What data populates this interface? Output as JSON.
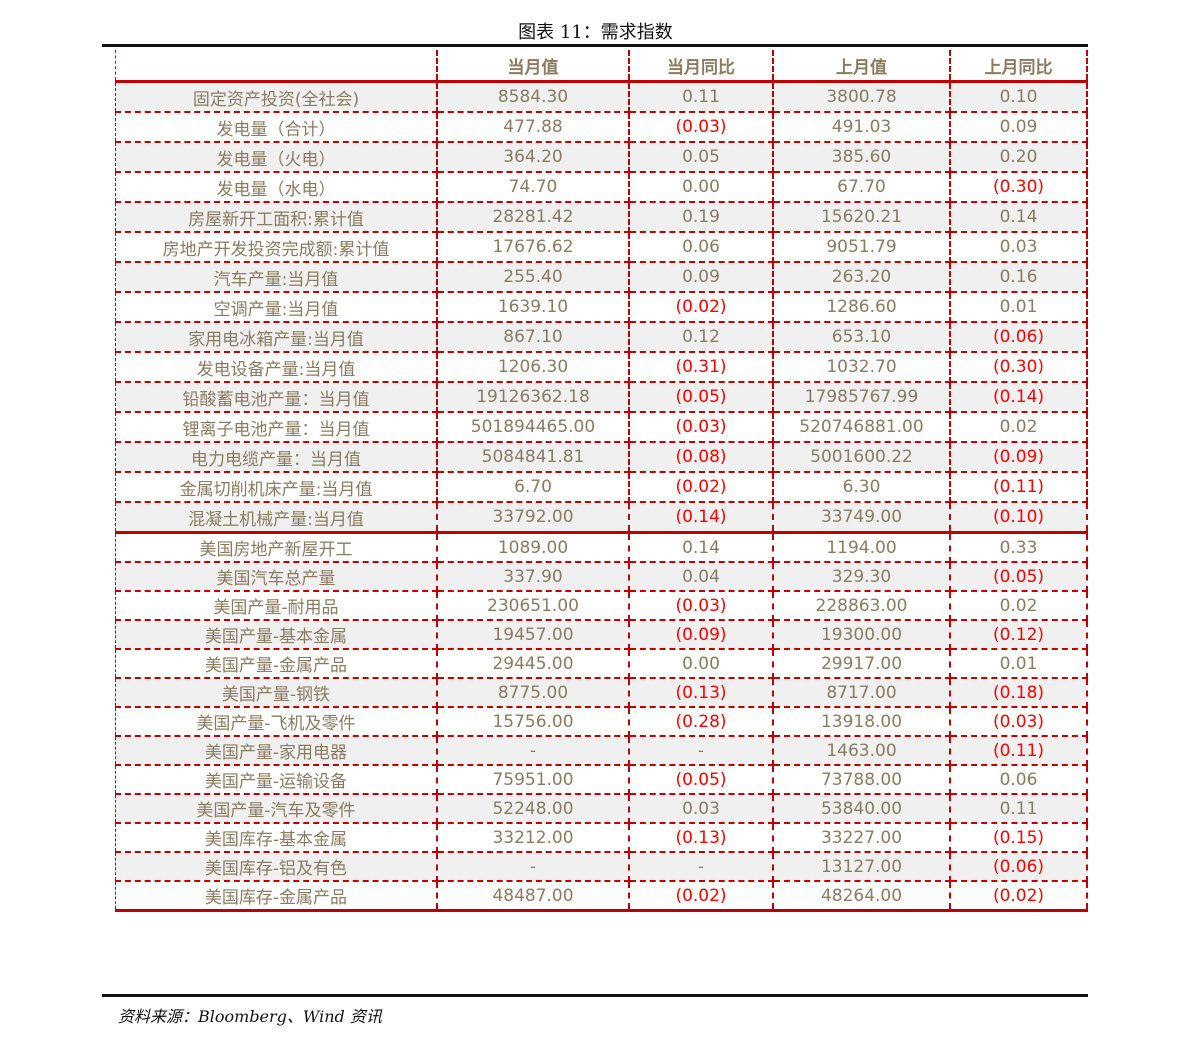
{
  "title": "图表 11：需求指数",
  "columns": [
    "",
    "当月值",
    "当月同比",
    "上月值",
    "上月同比"
  ],
  "rows": [
    [
      "固定资产投资(全社会)",
      "8584.30",
      "0.11",
      "3800.78",
      "0.10"
    ],
    [
      "发电量（合计）",
      "477.88",
      "(0.03)",
      "491.03",
      "0.09"
    ],
    [
      "发电量（火电）",
      "364.20",
      "0.05",
      "385.60",
      "0.20"
    ],
    [
      "发电量（水电）",
      "74.70",
      "0.00",
      "67.70",
      "(0.30)"
    ],
    [
      "房屋新开工面积:累计值",
      "28281.42",
      "0.19",
      "15620.21",
      "0.14"
    ],
    [
      "房地产开发投资完成额:累计值",
      "17676.62",
      "0.06",
      "9051.79",
      "0.03"
    ],
    [
      "汽车产量:当月值",
      "255.40",
      "0.09",
      "263.20",
      "0.16"
    ],
    [
      "空调产量:当月值",
      "1639.10",
      "(0.02)",
      "1286.60",
      "0.01"
    ],
    [
      "家用电冰箱产量:当月值",
      "867.10",
      "0.12",
      "653.10",
      "(0.06)"
    ],
    [
      "发电设备产量:当月值",
      "1206.30",
      "(0.31)",
      "1032.70",
      "(0.30)"
    ],
    [
      "铅酸蓄电池产量：当月值",
      "19126362.18",
      "(0.05)",
      "17985767.99",
      "(0.14)"
    ],
    [
      "锂离子电池产量：当月值",
      "501894465.00",
      "(0.03)",
      "520746881.00",
      "0.02"
    ],
    [
      "电力电缆产量：当月值",
      "5084841.81",
      "(0.08)",
      "5001600.22",
      "(0.09)"
    ],
    [
      "金属切削机床产量:当月值",
      "6.70",
      "(0.02)",
      "6.30",
      "(0.11)"
    ],
    [
      "混凝土机械产量:当月值",
      "33792.00",
      "(0.14)",
      "33749.00",
      "(0.10)"
    ],
    [
      "美国房地产新屋开工",
      "1089.00",
      "0.14",
      "1194.00",
      "0.33"
    ],
    [
      "美国汽车总产量",
      "337.90",
      "0.04",
      "329.30",
      "(0.05)"
    ],
    [
      "美国产量-耐用品",
      "230651.00",
      "(0.03)",
      "228863.00",
      "0.02"
    ],
    [
      "美国产量-基本金属",
      "19457.00",
      "(0.09)",
      "19300.00",
      "(0.12)"
    ],
    [
      "美国产量-金属产品",
      "29445.00",
      "0.00",
      "29917.00",
      "0.01"
    ],
    [
      "美国产量-钢铁",
      "8775.00",
      "(0.13)",
      "8717.00",
      "(0.18)"
    ],
    [
      "美国产量-飞机及零件",
      "15756.00",
      "(0.28)",
      "13918.00",
      "(0.03)"
    ],
    [
      "美国产量-家用电器",
      "-",
      "-",
      "1463.00",
      "(0.11)"
    ],
    [
      "美国产量-运输设备",
      "75951.00",
      "(0.05)",
      "73788.00",
      "0.06"
    ],
    [
      "美国产量-汽车及零件",
      "52248.00",
      "0.03",
      "53840.00",
      "0.11"
    ],
    [
      "美国库存-基本金属",
      "33212.00",
      "(0.13)",
      "33227.00",
      "(0.15)"
    ],
    [
      "美国库存-铝及有色",
      "-",
      "-",
      "13127.00",
      "(0.06)"
    ],
    [
      "美国库存-金属产品",
      "48487.00",
      "(0.02)",
      "48264.00",
      "(0.02)"
    ]
  ],
  "source": "资料来源：Bloomberg、Wind 资讯",
  "colors": {
    "border": "#c00000",
    "negative": "#ff0000",
    "text": "#8b7b60",
    "stripe": "#f0f0f0"
  }
}
